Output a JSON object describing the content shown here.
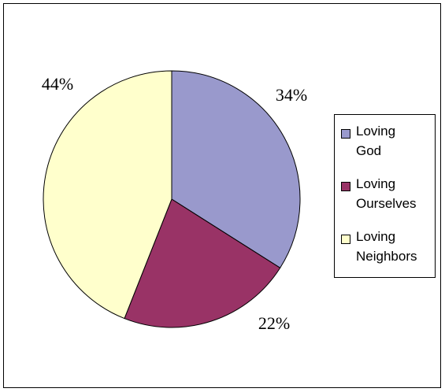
{
  "chart_data": {
    "type": "pie",
    "slices": [
      {
        "label": "Loving God",
        "value": 34,
        "value_label": "34%",
        "color": "#9999cc"
      },
      {
        "label": "Loving Ourselves",
        "value": 22,
        "value_label": "22%",
        "color": "#993366"
      },
      {
        "label": "Loving Neighbors",
        "value": 44,
        "value_label": "44%",
        "color": "#ffffcc"
      }
    ],
    "legend": {
      "placement": "right",
      "items": [
        {
          "line1": "Loving",
          "line2": "God"
        },
        {
          "line1": "Loving",
          "line2": "Ourselves"
        },
        {
          "line1": "Loving",
          "line2": "Neighbors"
        }
      ]
    },
    "start_angle_deg": 0,
    "direction": "clockwise"
  }
}
